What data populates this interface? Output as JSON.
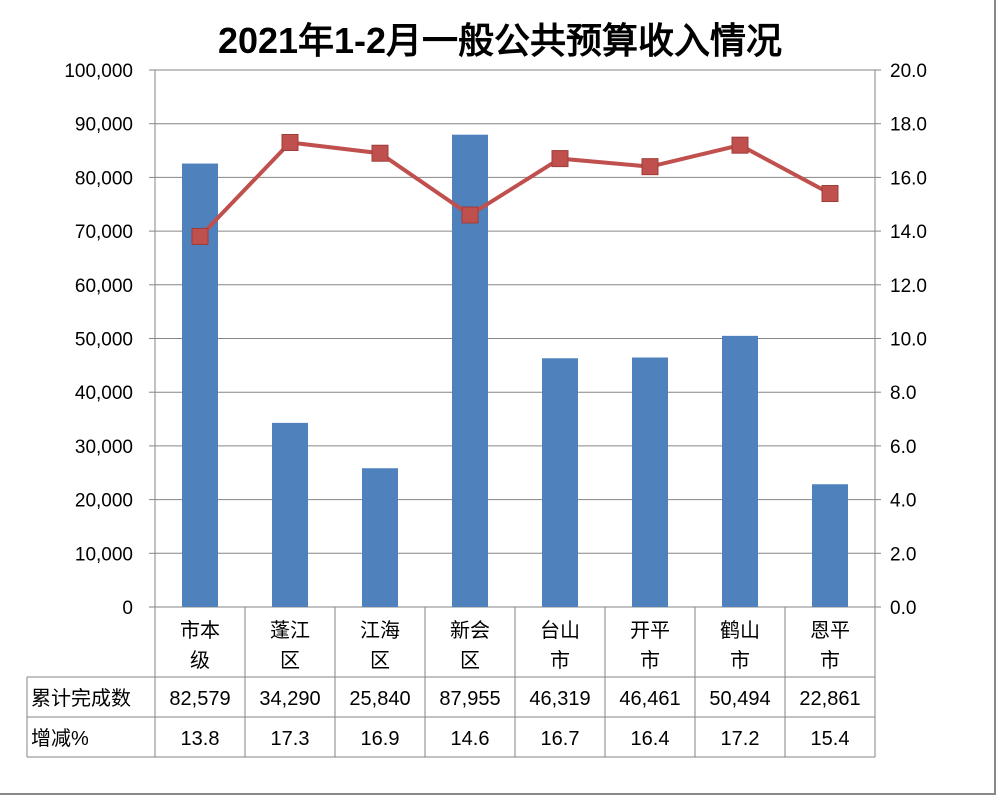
{
  "chart_data": {
    "type": "bar+line",
    "title": "2021年1-2月一般公共预算收入情况",
    "categories": [
      "市本级",
      "蓬江区",
      "江海区",
      "新会区",
      "台山市",
      "开平市",
      "鹤山市",
      "恩平市"
    ],
    "series": [
      {
        "name": "累计完成数",
        "type": "bar",
        "axis": "left",
        "color": "#4F81BD",
        "values": [
          82579,
          34290,
          25840,
          87955,
          46319,
          46461,
          50494,
          22861
        ],
        "labels": [
          "82,579",
          "34,290",
          "25,840",
          "87,955",
          "46,319",
          "46,461",
          "50,494",
          "22,861"
        ]
      },
      {
        "name": "增减%",
        "type": "line",
        "axis": "right",
        "color": "#C0504D",
        "values": [
          13.8,
          17.3,
          16.9,
          14.6,
          16.7,
          16.4,
          17.2,
          15.4
        ],
        "labels": [
          "13.8",
          "17.3",
          "16.9",
          "14.6",
          "16.7",
          "16.4",
          "17.2",
          "15.4"
        ]
      }
    ],
    "ylim_left": [
      0,
      100000
    ],
    "ylim_right": [
      0,
      20
    ],
    "yticks_left": [
      "0",
      "10,000",
      "20,000",
      "30,000",
      "40,000",
      "50,000",
      "60,000",
      "70,000",
      "80,000",
      "90,000",
      "100,000"
    ],
    "yticks_right": [
      "0.0",
      "2.0",
      "4.0",
      "6.0",
      "8.0",
      "10.0",
      "12.0",
      "14.0",
      "16.0",
      "18.0",
      "20.0"
    ],
    "grid": true,
    "legend": "data-table"
  }
}
